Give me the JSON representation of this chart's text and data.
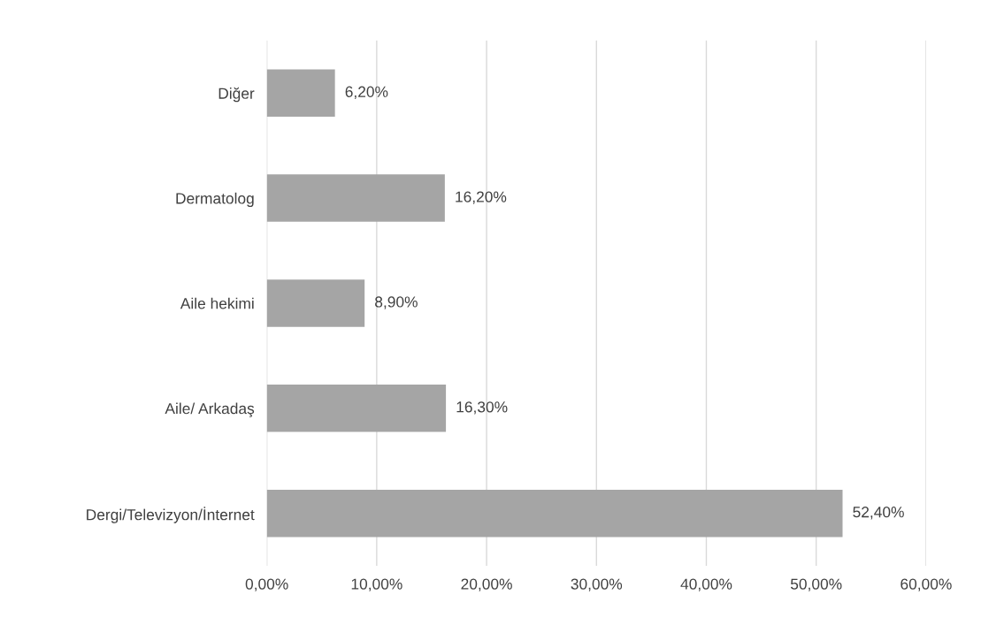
{
  "chart_data": {
    "type": "bar",
    "orientation": "horizontal",
    "categories": [
      "Diğer",
      "Dermatolog",
      "Aile hekimi",
      "Aile/ Arkadaş",
      "Dergi/Televizyon/İnternet"
    ],
    "values": [
      6.2,
      16.2,
      8.9,
      16.3,
      52.4
    ],
    "value_labels": [
      "6,20%",
      "16,20%",
      "8,90%",
      "16,30%",
      "52,40%"
    ],
    "color": "#a5a5a5",
    "xlim": [
      0,
      60
    ],
    "xticks": [
      {
        "value": 0,
        "label": "0,00%"
      },
      {
        "value": 10,
        "label": "10,00%"
      },
      {
        "value": 20,
        "label": "20,00%"
      },
      {
        "value": 30,
        "label": "30,00%"
      },
      {
        "value": 40,
        "label": "40,00%"
      },
      {
        "value": 50,
        "label": "50,00%"
      },
      {
        "value": 60,
        "label": "60,00%"
      }
    ],
    "grid": "x",
    "legend": false
  }
}
